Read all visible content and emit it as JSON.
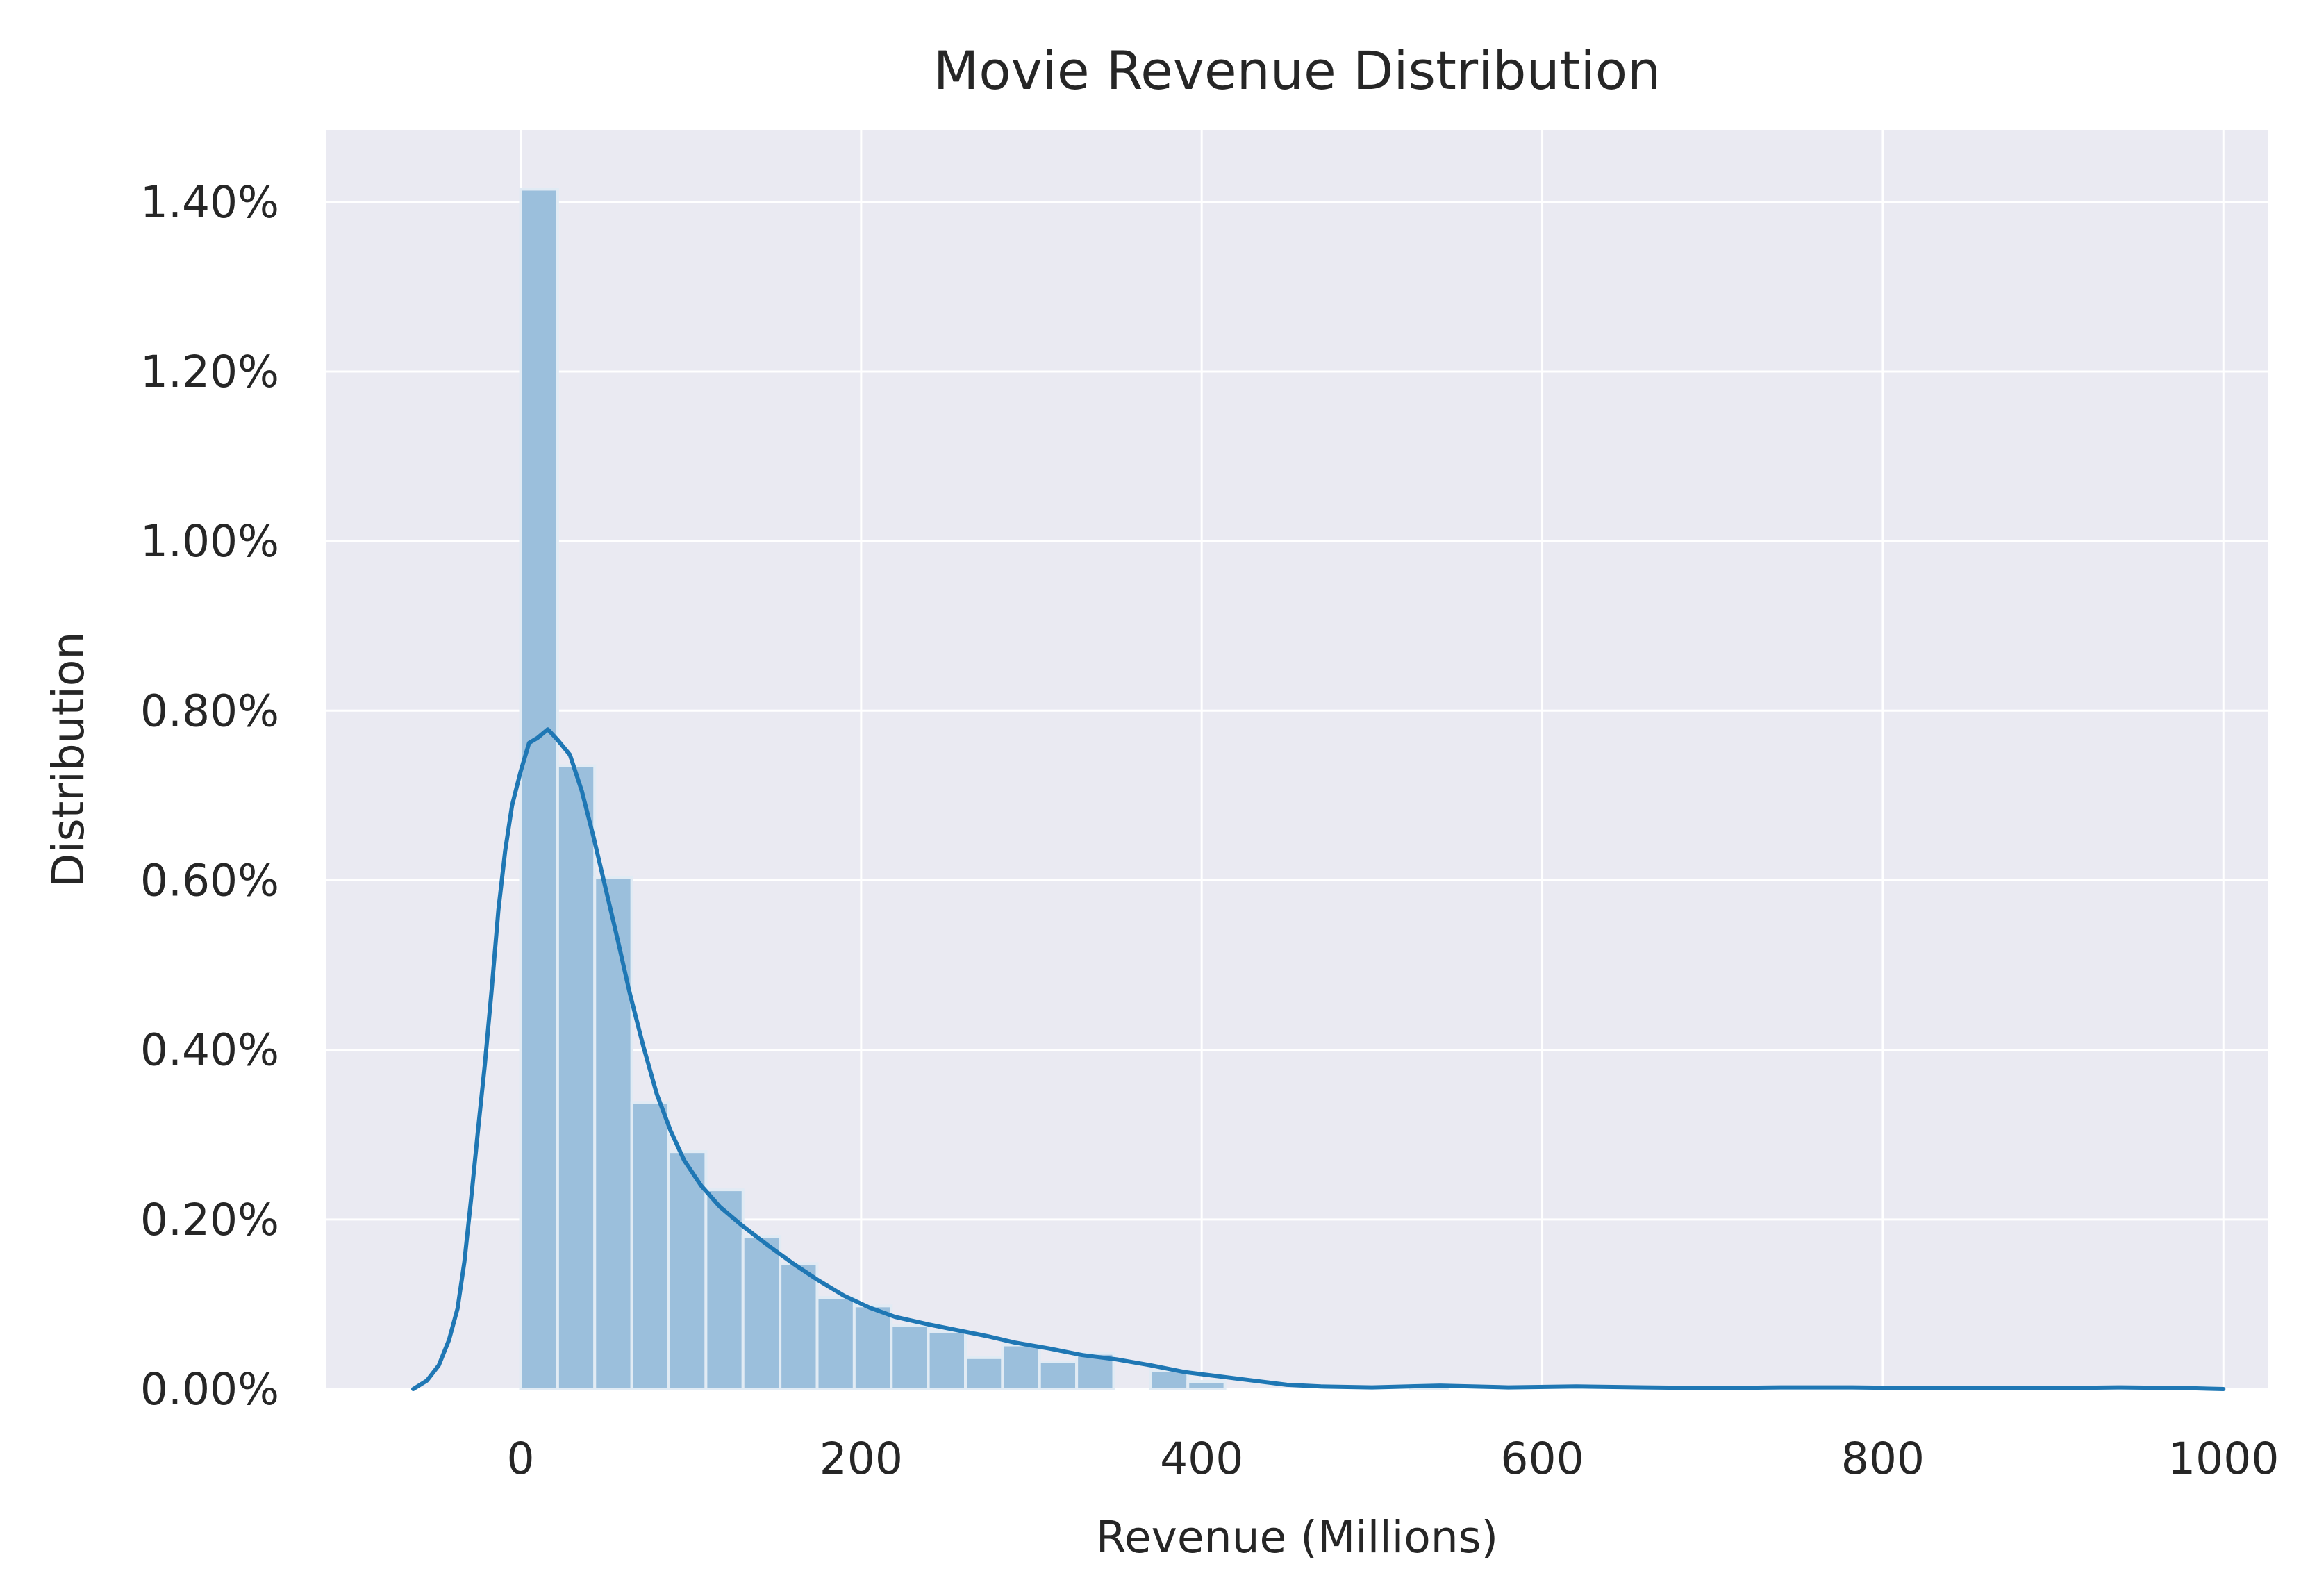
{
  "chart_data": {
    "type": "histogram",
    "title": "Movie Revenue Distribution",
    "xlabel": "Revenue (Millions)",
    "ylabel": "Distribution",
    "xlim": [
      -114,
      1026
    ],
    "ylim": [
      0.0,
      0.01485
    ],
    "x_ticks": [
      0,
      200,
      400,
      600,
      800,
      1000
    ],
    "x_tick_labels": [
      "0",
      "200",
      "400",
      "600",
      "800",
      "1000"
    ],
    "y_ticks": [
      0.0,
      0.002,
      0.004,
      0.006,
      0.008,
      0.01,
      0.012,
      0.014
    ],
    "y_tick_labels": [
      "0.00%",
      "0.20%",
      "0.40%",
      "0.60%",
      "0.80%",
      "1.00%",
      "1.20%",
      "1.40%"
    ],
    "grid": true,
    "background_color": "#EAEAF2",
    "grid_color": "#FFFFFF",
    "bar_color": "#9BBFDC",
    "bar_edge_color": "#E1EBF4",
    "line_color": "#1F77B4",
    "bins": {
      "start": 0,
      "width": 21.77,
      "densities": [
        0.01415,
        0.00735,
        0.00603,
        0.00338,
        0.0028,
        0.00235,
        0.0018,
        0.00148,
        0.00108,
        0.00098,
        0.00075,
        0.00068,
        0.00037,
        0.00052,
        0.00032,
        0.00042,
        0.0,
        0.00022,
        9e-05,
        0.0,
        0.0,
        0.0,
        0.0,
        0.0,
        5e-05
      ]
    },
    "kde": {
      "x": [
        -63,
        -55,
        -48,
        -42,
        -37,
        -33,
        -29,
        -25,
        -21,
        -17,
        -13,
        -9,
        -5,
        0,
        5,
        10,
        16,
        22,
        29,
        36,
        43,
        50,
        57,
        64,
        72,
        80,
        88,
        96,
        106,
        117,
        130,
        145,
        160,
        175,
        190,
        205,
        220,
        240,
        260,
        275,
        290,
        310,
        330,
        350,
        370,
        390,
        410,
        430,
        450,
        470,
        500,
        540,
        580,
        620,
        660,
        700,
        740,
        780,
        820,
        860,
        900,
        940,
        980,
        1000
      ],
      "y": [
        0.0,
        0.0001,
        0.00028,
        0.00058,
        0.00095,
        0.0015,
        0.00225,
        0.00305,
        0.00382,
        0.0047,
        0.00565,
        0.00635,
        0.00688,
        0.00728,
        0.00762,
        0.00768,
        0.00778,
        0.00765,
        0.00748,
        0.00705,
        0.0065,
        0.0059,
        0.0053,
        0.00468,
        0.00405,
        0.00348,
        0.00305,
        0.0027,
        0.0024,
        0.00215,
        0.00193,
        0.0017,
        0.00148,
        0.00128,
        0.0011,
        0.00096,
        0.00085,
        0.00076,
        0.00068,
        0.00062,
        0.00055,
        0.00048,
        0.0004,
        0.00035,
        0.00028,
        0.0002,
        0.00015,
        0.0001,
        5e-05,
        3e-05,
        2e-05,
        4e-05,
        2e-05,
        3e-05,
        2e-05,
        1e-05,
        2e-05,
        2e-05,
        1e-05,
        1e-05,
        1e-05,
        2e-05,
        1e-05,
        0.0
      ]
    }
  }
}
